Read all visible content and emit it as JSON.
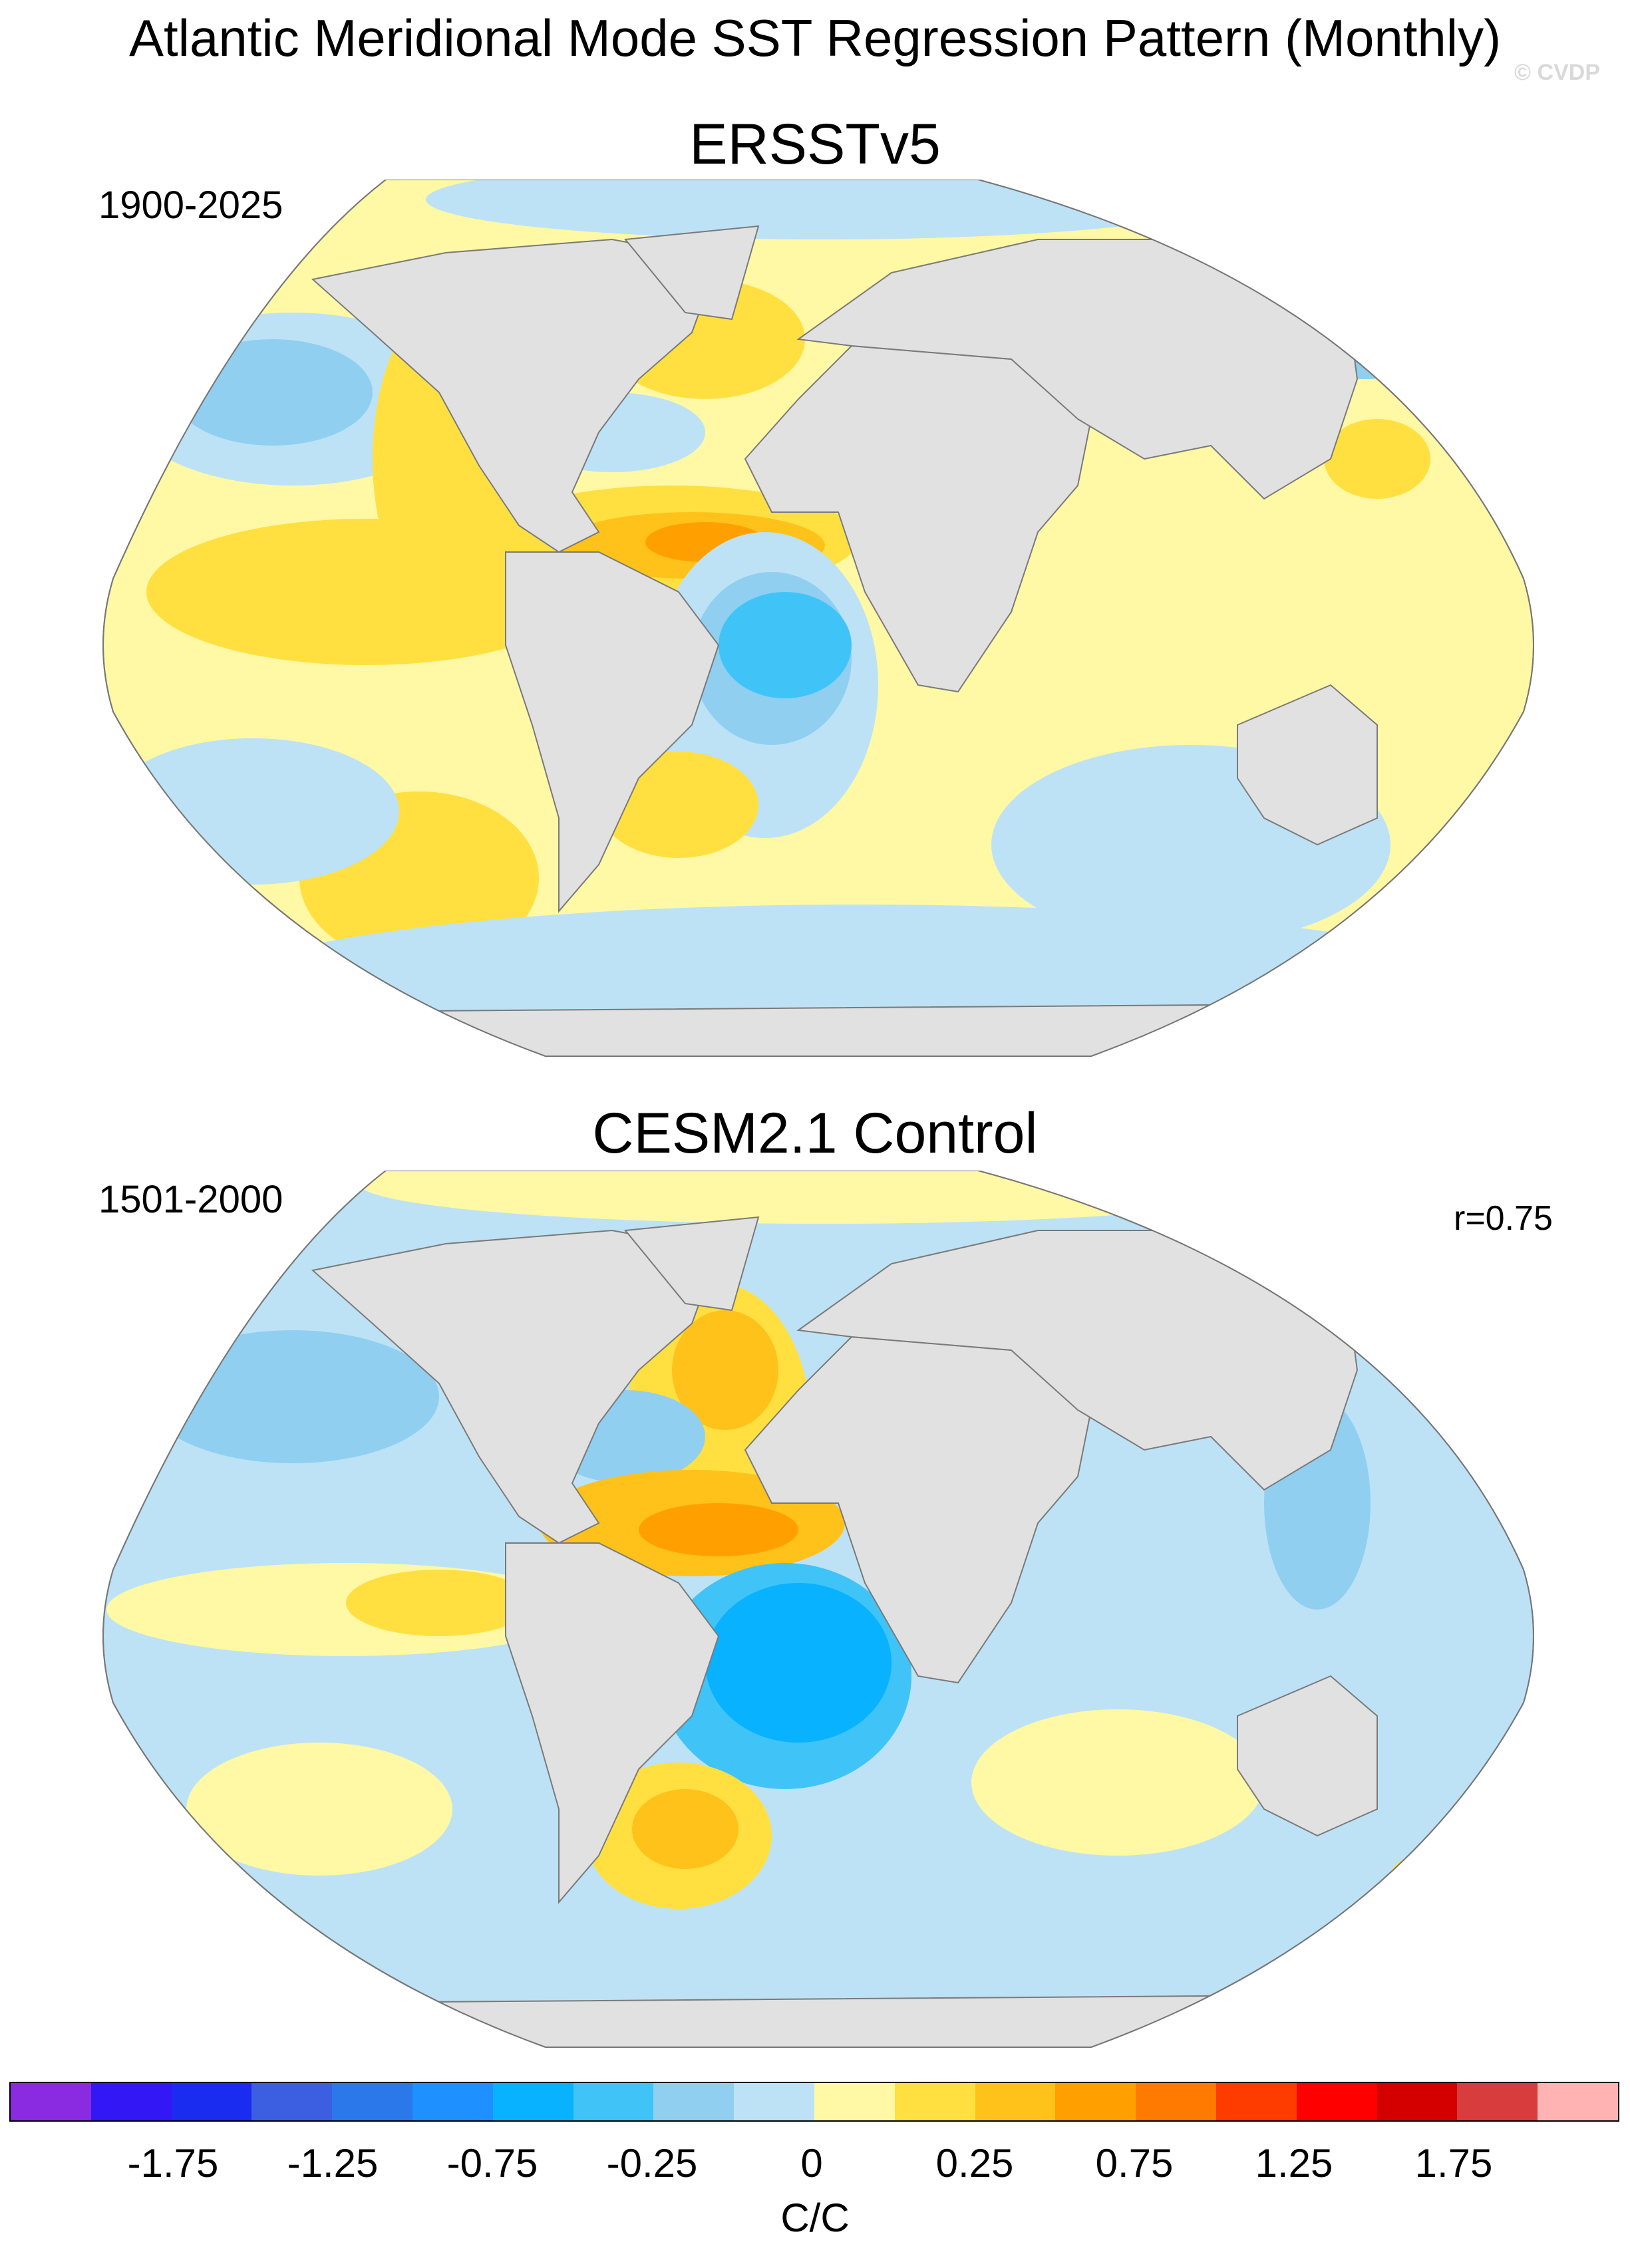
{
  "figure": {
    "title": "Atlantic Meridional Mode SST Regression Pattern (Monthly)",
    "watermark": "© CVDP"
  },
  "panels": [
    {
      "name": "ERSSTv5",
      "period": "1900-2025",
      "correlation": ""
    },
    {
      "name": "CESM2.1 Control",
      "period": "1501-2000",
      "correlation": "r=0.75"
    }
  ],
  "colorbar": {
    "units": "C/C",
    "tick_labels": [
      "-1.75",
      "-1.25",
      "-0.75",
      "-0.25",
      "0",
      "0.25",
      "0.75",
      "1.25",
      "1.75"
    ],
    "colors": [
      "#8a2be2",
      "#3318f5",
      "#1a2cf0",
      "#3b5fe0",
      "#2b78ea",
      "#1e90ff",
      "#08b2ff",
      "#40c4f8",
      "#90cff0",
      "#bde2f6",
      "#fff8a5",
      "#ffe040",
      "#ffc21a",
      "#ffa000",
      "#ff7a00",
      "#ff3c00",
      "#ff0000",
      "#d40000",
      "#d83c3c",
      "#ffb3b3"
    ]
  },
  "map_legend": {
    "land": "#e1e1e1",
    "coast": "#7a7a7a"
  }
}
